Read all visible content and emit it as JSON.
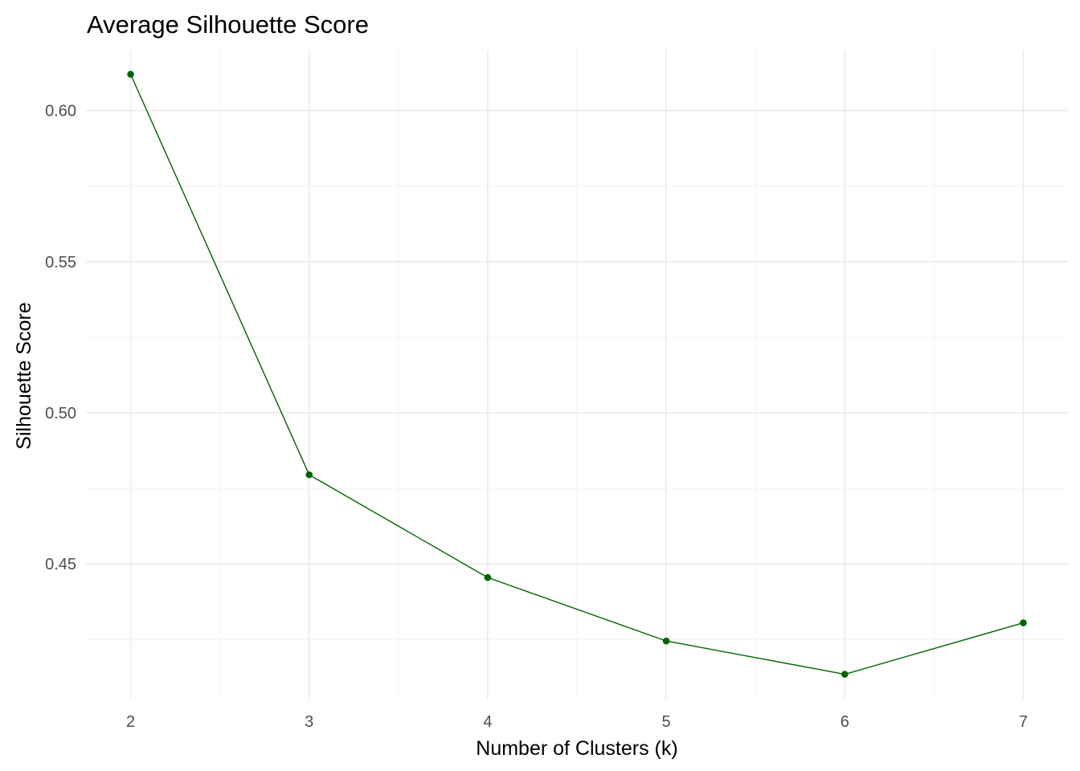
{
  "chart_data": {
    "type": "line",
    "title": "Average Silhouette Score",
    "xlabel": "Number of Clusters (k)",
    "ylabel": "Silhouette Score",
    "x": [
      2,
      3,
      4,
      5,
      6,
      7
    ],
    "series": [
      {
        "values": [
          0.612,
          0.4795,
          0.4455,
          0.4245,
          0.4135,
          0.4305
        ],
        "color": "#006400"
      }
    ],
    "xticks": [
      2,
      3,
      4,
      5,
      6,
      7
    ],
    "xtick_labels": [
      "2",
      "3",
      "4",
      "5",
      "6",
      "7"
    ],
    "yticks": [
      0.45,
      0.5,
      0.55,
      0.6
    ],
    "ytick_labels": [
      "0.45",
      "0.50",
      "0.55",
      "0.60"
    ],
    "xlim": [
      1.75,
      7.25
    ],
    "ylim": [
      0.4054,
      0.6201
    ],
    "grid": true,
    "legend": "none"
  }
}
